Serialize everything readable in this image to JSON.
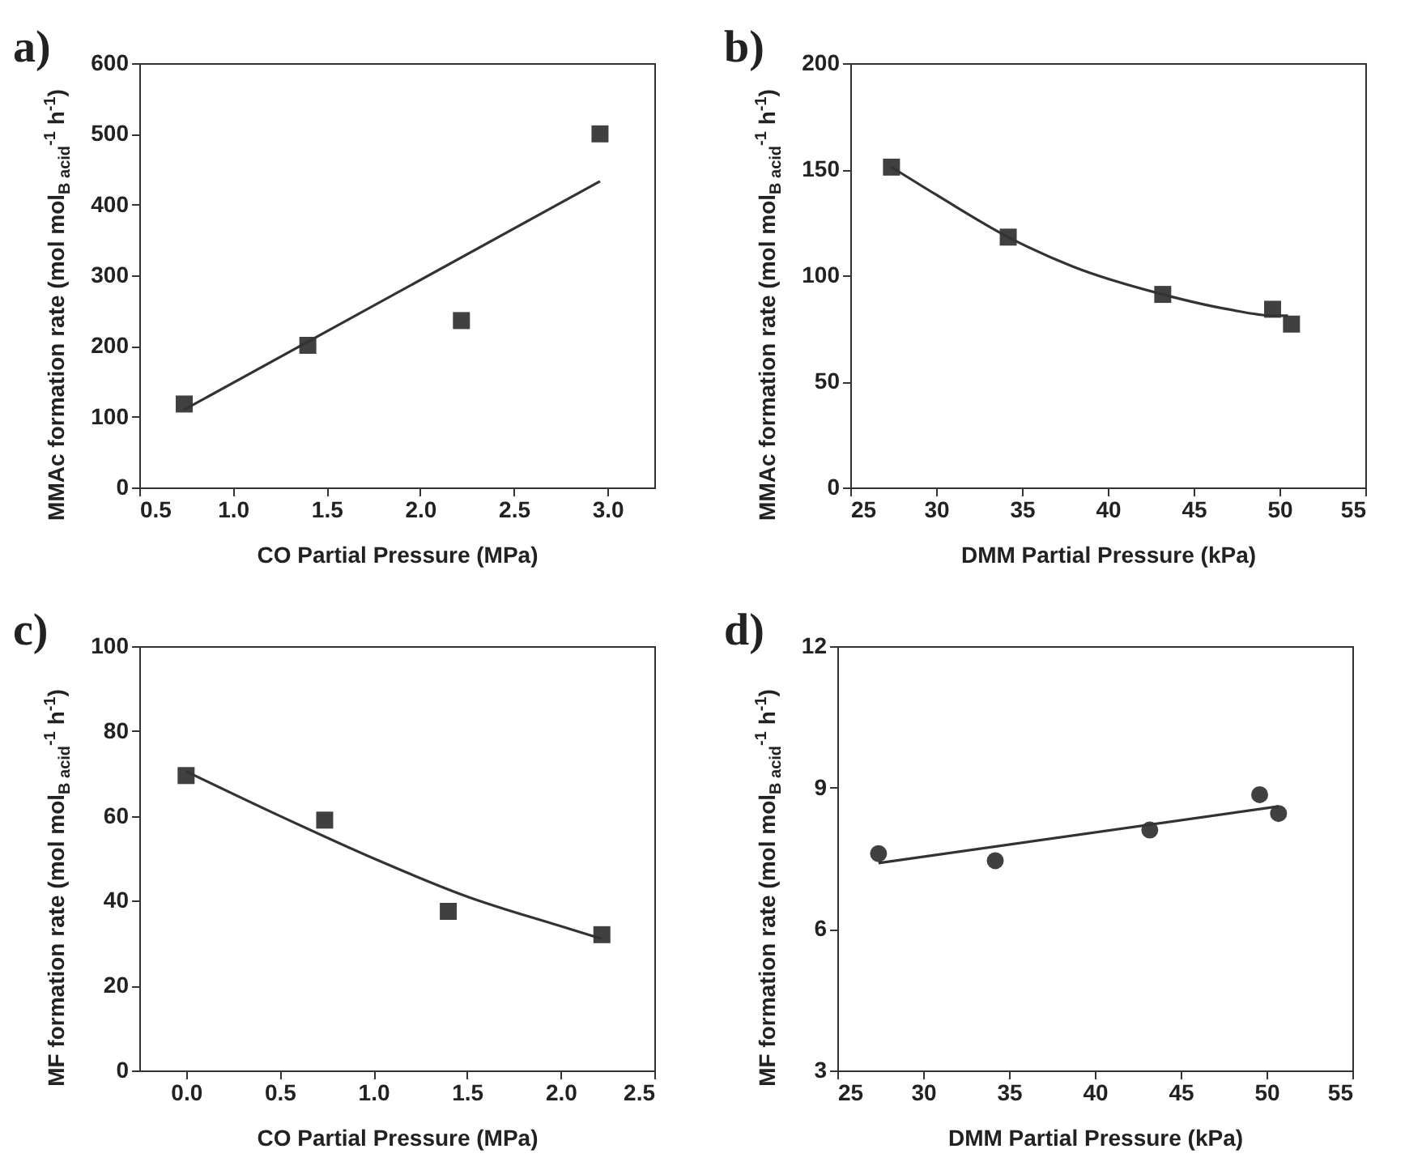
{
  "chart_data": [
    {
      "type": "scatter",
      "title": "a)",
      "xlabel": "CO Partial Pressure (MPa)",
      "ylabel": "MMAc formation rate (mol mol$_{B acid}$$^{-1}$ h$^{-1}$)",
      "xlim": [
        0.5,
        3.25
      ],
      "xticks": [
        0.5,
        {
          "value": 1,
          "label": "1.0"
        },
        1.5,
        {
          "value": 2,
          "label": "2.0"
        },
        2.5,
        {
          "value": 3,
          "label": "3.0"
        }
      ],
      "ylim": [
        0,
        600
      ],
      "yticks": [
        0,
        100,
        200,
        300,
        400,
        500,
        600
      ],
      "grid": false,
      "series": [
        {
          "type": "scatter",
          "marker": "square",
          "color": "#404040",
          "x": [
            0.74,
            1.4,
            2.22,
            2.96
          ],
          "values": [
            118,
            201,
            236,
            500
          ]
        },
        {
          "type": "line",
          "color": "#333333",
          "x": [
            0.74,
            2.96
          ],
          "values": [
            110,
            433
          ]
        }
      ]
    },
    {
      "type": "scatter",
      "title": "b)",
      "xlabel": "DMM Partial Pressure (kPa)",
      "ylabel": "MMAc formation rate (mol mol$_{B acid}$$^{-1}$ h$^{-1}$)",
      "xlim": [
        25,
        55
      ],
      "xticks": [
        25,
        30,
        35,
        40,
        45,
        50,
        55
      ],
      "ylim": [
        0,
        200
      ],
      "yticks": [
        0,
        50,
        100,
        150,
        200
      ],
      "grid": false,
      "series": [
        {
          "type": "scatter",
          "marker": "square",
          "color": "#404040",
          "x": [
            27.4,
            34.2,
            43.2,
            49.6,
            50.7
          ],
          "values": [
            151,
            118,
            91,
            84,
            77
          ]
        },
        {
          "type": "line",
          "color": "#333333",
          "x": [
            27.4,
            30,
            34.2,
            38,
            43.2,
            47,
            49.6,
            50.5
          ],
          "values": [
            151,
            138,
            118,
            104,
            91,
            84,
            81,
            81
          ]
        }
      ]
    },
    {
      "type": "scatter",
      "title": "c)",
      "xlabel": "CO Partial Pressure (MPa)",
      "ylabel": "MF formation rate (mol mol$_{B acid}$$^{-1}$ h$^{-1}$)",
      "xlim": [
        -0.25,
        2.5
      ],
      "xticks": [
        {
          "value": 0,
          "label": "0.0"
        },
        0.5,
        {
          "value": 1,
          "label": "1.0"
        },
        1.5,
        {
          "value": 2,
          "label": "2.0"
        },
        2.5
      ],
      "ylim": [
        0,
        100
      ],
      "yticks": [
        0,
        20,
        40,
        60,
        80,
        100
      ],
      "grid": false,
      "series": [
        {
          "type": "scatter",
          "marker": "square",
          "color": "#404040",
          "x": [
            0,
            0.74,
            1.4,
            2.22
          ],
          "values": [
            69.5,
            59,
            37.5,
            32
          ]
        },
        {
          "type": "line",
          "color": "#333333",
          "x": [
            0,
            0.5,
            1.0,
            1.5,
            2.0,
            2.22
          ],
          "values": [
            70.5,
            60,
            50,
            41,
            34,
            31
          ]
        }
      ]
    },
    {
      "type": "scatter",
      "title": "d)",
      "xlabel": "DMM Partial Pressure (kPa)",
      "ylabel": "MF formation rate (mol mol$_{B acid}$$^{-1}$ h$^{-1}$)",
      "xlim": [
        25,
        55
      ],
      "xticks": [
        25,
        30,
        35,
        40,
        45,
        50,
        55
      ],
      "ylim": [
        3,
        12
      ],
      "yticks": [
        3,
        6,
        9,
        12
      ],
      "grid": false,
      "series": [
        {
          "type": "scatter",
          "marker": "circle",
          "color": "#404040",
          "x": [
            27.4,
            34.2,
            43.2,
            49.6,
            50.7
          ],
          "values": [
            7.6,
            7.45,
            8.1,
            8.85,
            8.45
          ]
        },
        {
          "type": "line",
          "color": "#333333",
          "x": [
            27.4,
            50.7
          ],
          "values": [
            7.4,
            8.6
          ]
        }
      ]
    }
  ]
}
